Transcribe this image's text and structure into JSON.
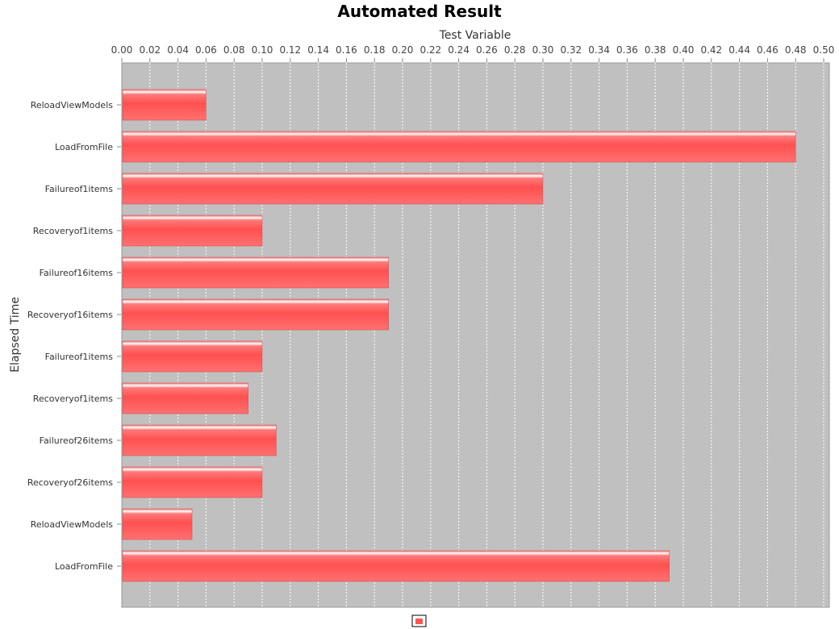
{
  "chart_data": {
    "type": "bar",
    "orientation": "horizontal",
    "title": "Automated Result",
    "xlabel": "Test Variable",
    "ylabel": "Elapsed Time",
    "xlim": [
      0,
      0.5
    ],
    "x_tick_step": 0.02,
    "grid": true,
    "legend_position": "bottom-center",
    "categories": [
      "ReloadViewModels",
      "LoadFromFile",
      "Failureof1items",
      "Recoveryof1items",
      "Failureof16items",
      "Recoveryof16items",
      "Failureof1items",
      "Recoveryof1items",
      "Failureof26items",
      "Recoveryof26items",
      "ReloadViewModels",
      "LoadFromFile"
    ],
    "series": [
      {
        "values": [
          0.06,
          0.48,
          0.3,
          0.1,
          0.19,
          0.19,
          0.1,
          0.09,
          0.11,
          0.1,
          0.05,
          0.39
        ],
        "color": "#ff5555"
      }
    ]
  }
}
